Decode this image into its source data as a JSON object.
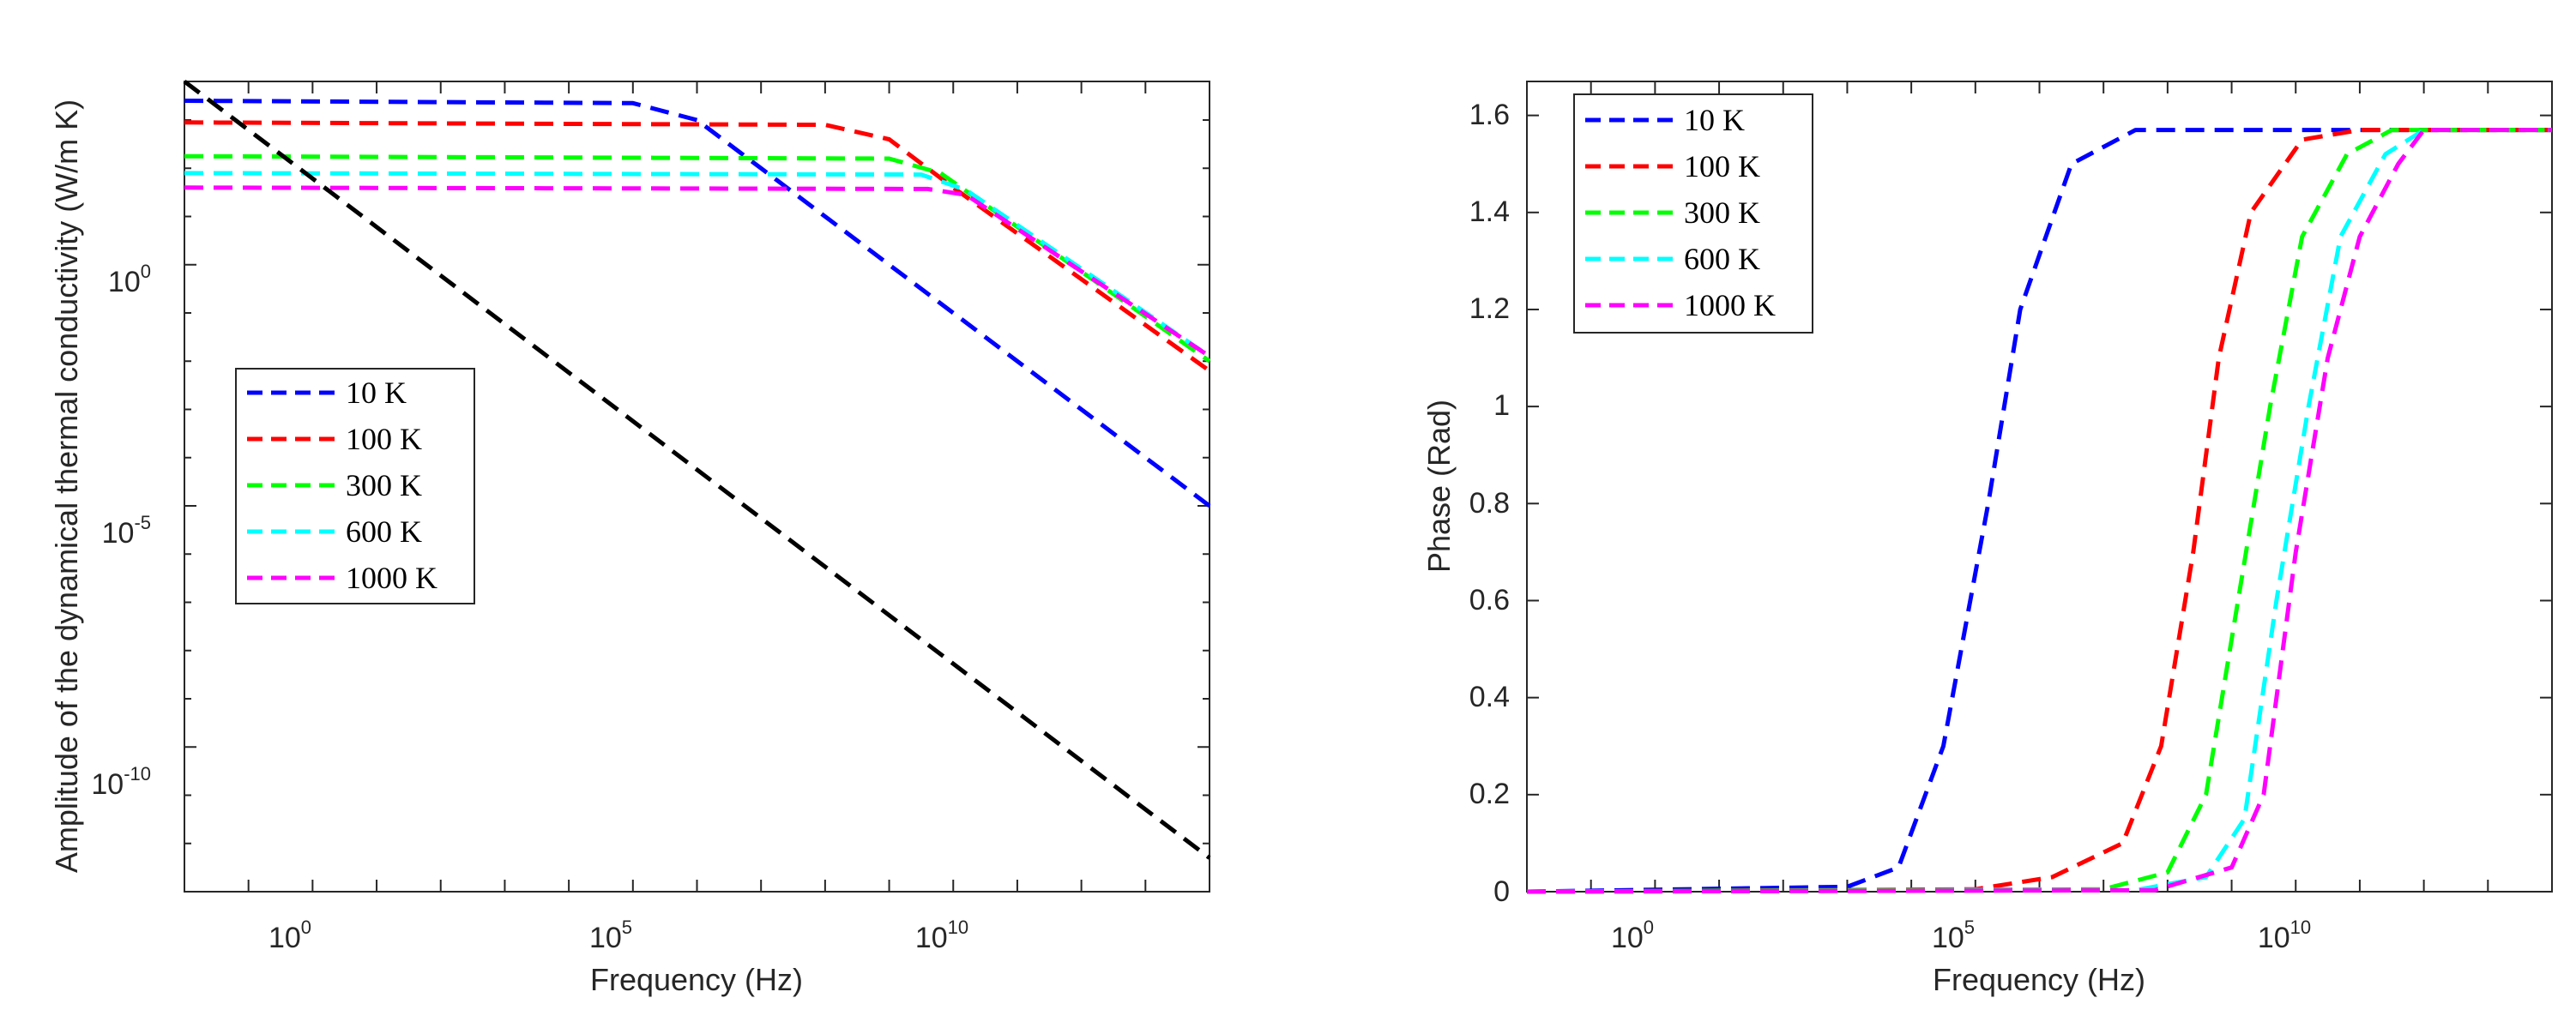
{
  "colors": {
    "10 K": "#0000ff",
    "100 K": "#ff0000",
    "300 K": "#00ff00",
    "600 K": "#00ffff",
    "1000 K": "#ff00ff",
    "reference": "#000000"
  },
  "chart_data": [
    {
      "type": "line",
      "scale": "log-log",
      "title": "",
      "xlabel": "Frequency (Hz)",
      "ylabel": "Amplitude of the dynamical thermal conductivity (W/m K)",
      "xlim_log10": [
        -2,
        14
      ],
      "ylim_log10": [
        -13,
        3.8
      ],
      "xticks": [
        {
          "base": "10",
          "exp": "0",
          "log10": 0
        },
        {
          "base": "10",
          "exp": "5",
          "log10": 5
        },
        {
          "base": "10",
          "exp": "10",
          "log10": 10
        }
      ],
      "yticks": [
        {
          "base": "10",
          "exp": "0",
          "log10": 0
        },
        {
          "base": "10",
          "exp": "-5",
          "log10": -5
        },
        {
          "base": "10",
          "exp": "-10",
          "log10": -10
        }
      ],
      "legend": [
        "10 K",
        "100 K",
        "300 K",
        "600 K",
        "1000 K"
      ],
      "legend_position": "center-left",
      "series": [
        {
          "name": "10 K",
          "points_log10": [
            [
              -2,
              3.4
            ],
            [
              5,
              3.35
            ],
            [
              6,
              3.0
            ],
            [
              14,
              -5.0
            ]
          ]
        },
        {
          "name": "100 K",
          "points_log10": [
            [
              -2,
              2.95
            ],
            [
              8,
              2.9
            ],
            [
              9,
              2.6
            ],
            [
              10,
              1.6
            ],
            [
              14,
              -2.2
            ]
          ]
        },
        {
          "name": "300 K",
          "points_log10": [
            [
              -2,
              2.25
            ],
            [
              9,
              2.2
            ],
            [
              9.8,
              1.9
            ],
            [
              14,
              -2.0
            ]
          ]
        },
        {
          "name": "600 K",
          "points_log10": [
            [
              -2,
              1.9
            ],
            [
              9.5,
              1.87
            ],
            [
              10.2,
              1.55
            ],
            [
              14,
              -1.9
            ]
          ]
        },
        {
          "name": "1000 K",
          "points_log10": [
            [
              -2,
              1.6
            ],
            [
              9.6,
              1.57
            ],
            [
              10.2,
              1.45
            ],
            [
              14,
              -1.9
            ]
          ]
        },
        {
          "name": "reference",
          "points_log10": [
            [
              -2,
              3.8
            ],
            [
              14,
              -12.3
            ]
          ]
        }
      ]
    },
    {
      "type": "line",
      "scale": "semilog-x",
      "title": "",
      "xlabel": "Frequency (Hz)",
      "ylabel": "Phase (Rad)",
      "xlim_log10": [
        -2,
        14
      ],
      "ylim": [
        0,
        1.67
      ],
      "xticks": [
        {
          "base": "10",
          "exp": "0",
          "log10": 0
        },
        {
          "base": "10",
          "exp": "5",
          "log10": 5
        },
        {
          "base": "10",
          "exp": "10",
          "log10": 10
        }
      ],
      "yticks": [
        "0",
        "0.2",
        "0.4",
        "0.6",
        "0.8",
        "1",
        "1.2",
        "1.4",
        "1.6"
      ],
      "yticks_values": [
        0,
        0.2,
        0.4,
        0.6,
        0.8,
        1.0,
        1.2,
        1.4,
        1.6
      ],
      "legend": [
        "10 K",
        "100 K",
        "300 K",
        "600 K",
        "1000 K"
      ],
      "legend_position": "top-left",
      "series": [
        {
          "name": "10 K",
          "points": [
            [
              -2,
              0
            ],
            [
              3,
              0.01
            ],
            [
              3.8,
              0.05
            ],
            [
              4.5,
              0.3
            ],
            [
              5.2,
              0.8
            ],
            [
              5.7,
              1.2
            ],
            [
              6.5,
              1.5
            ],
            [
              7.5,
              1.57
            ],
            [
              14,
              1.57
            ]
          ]
        },
        {
          "name": "100 K",
          "points": [
            [
              -2,
              0
            ],
            [
              5,
              0.005
            ],
            [
              6.2,
              0.03
            ],
            [
              7.3,
              0.1
            ],
            [
              7.9,
              0.3
            ],
            [
              8.4,
              0.7
            ],
            [
              8.8,
              1.1
            ],
            [
              9.3,
              1.4
            ],
            [
              10.1,
              1.55
            ],
            [
              11,
              1.57
            ],
            [
              14,
              1.57
            ]
          ]
        },
        {
          "name": "300 K",
          "points": [
            [
              -2,
              0
            ],
            [
              7,
              0.005
            ],
            [
              8,
              0.04
            ],
            [
              8.6,
              0.2
            ],
            [
              9.1,
              0.6
            ],
            [
              9.6,
              1.0
            ],
            [
              10.1,
              1.35
            ],
            [
              10.8,
              1.52
            ],
            [
              11.5,
              1.57
            ],
            [
              14,
              1.57
            ]
          ]
        },
        {
          "name": "600 K",
          "points": [
            [
              -2,
              0
            ],
            [
              7.5,
              0.003
            ],
            [
              8.6,
              0.03
            ],
            [
              9.2,
              0.15
            ],
            [
              9.7,
              0.6
            ],
            [
              10.2,
              1.0
            ],
            [
              10.7,
              1.35
            ],
            [
              11.4,
              1.52
            ],
            [
              12,
              1.57
            ],
            [
              14,
              1.57
            ]
          ]
        },
        {
          "name": "1000 K",
          "points": [
            [
              -2,
              0
            ],
            [
              7.8,
              0.003
            ],
            [
              9.0,
              0.05
            ],
            [
              9.5,
              0.2
            ],
            [
              10.0,
              0.7
            ],
            [
              10.5,
              1.1
            ],
            [
              11.0,
              1.35
            ],
            [
              11.6,
              1.5
            ],
            [
              12,
              1.57
            ],
            [
              14,
              1.57
            ]
          ]
        }
      ]
    }
  ]
}
